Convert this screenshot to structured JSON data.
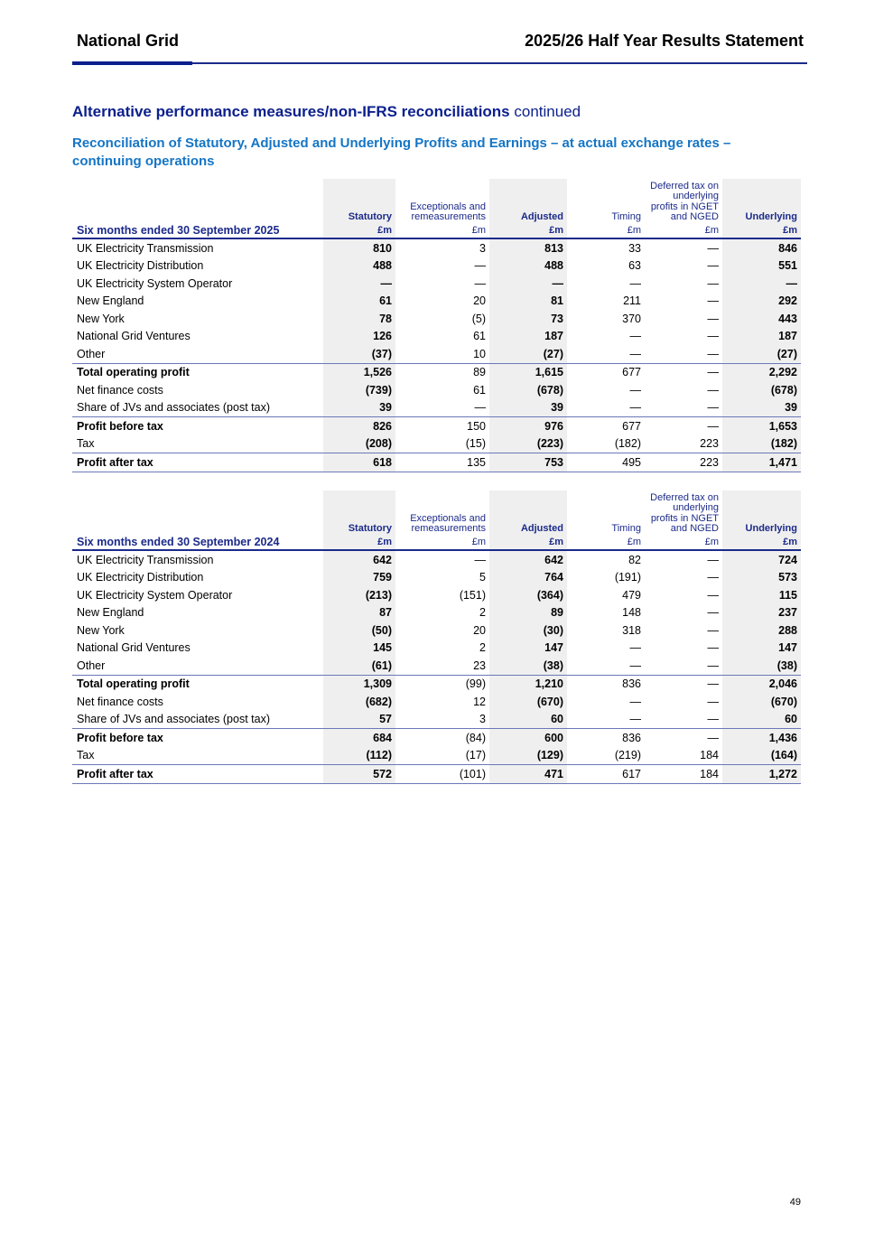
{
  "header": {
    "company": "National Grid",
    "document": "2025/26 Half Year Results Statement"
  },
  "section_title": "Alternative performance measures/non-IFRS reconciliations",
  "section_suffix": "continued",
  "subtitle": "Reconciliation of Statutory, Adjusted and Underlying Profits and Earnings – at actual exchange rates – continuing operations",
  "columns": [
    {
      "label": "Statutory",
      "unit": "£m"
    },
    {
      "label": "Exceptionals and remeasurements",
      "unit": "£m"
    },
    {
      "label": "Adjusted",
      "unit": "£m"
    },
    {
      "label": "Timing",
      "unit": "£m"
    },
    {
      "label": "Deferred tax on underlying profits in NGET and NGED",
      "unit": "£m"
    },
    {
      "label": "Underlying",
      "unit": "£m"
    }
  ],
  "tables": [
    {
      "period": "Six months ended 30 September 2025",
      "rows": [
        {
          "label": "UK Electricity Transmission",
          "values": [
            "810",
            "3",
            "813",
            "33",
            "—",
            "846"
          ]
        },
        {
          "label": "UK Electricity Distribution",
          "values": [
            "488",
            "—",
            "488",
            "63",
            "—",
            "551"
          ]
        },
        {
          "label": "UK Electricity System Operator",
          "values": [
            "—",
            "—",
            "—",
            "—",
            "—",
            "—"
          ]
        },
        {
          "label": "New England",
          "values": [
            "61",
            "20",
            "81",
            "211",
            "—",
            "292"
          ]
        },
        {
          "label": "New York",
          "values": [
            "78",
            "(5)",
            "73",
            "370",
            "—",
            "443"
          ]
        },
        {
          "label": "National Grid Ventures",
          "values": [
            "126",
            "61",
            "187",
            "—",
            "—",
            "187"
          ]
        },
        {
          "label": "Other",
          "values": [
            "(37)",
            "10",
            "(27)",
            "—",
            "—",
            "(27)"
          ]
        },
        {
          "label": "Total operating profit",
          "total": true,
          "values": [
            "1,526",
            "89",
            "1,615",
            "677",
            "—",
            "2,292"
          ]
        },
        {
          "label": "Net finance costs",
          "values": [
            "(739)",
            "61",
            "(678)",
            "—",
            "—",
            "(678)"
          ]
        },
        {
          "label": "Share of JVs and associates (post tax)",
          "values": [
            "39",
            "—",
            "39",
            "—",
            "—",
            "39"
          ]
        },
        {
          "label": "Profit before tax",
          "total": true,
          "values": [
            "826",
            "150",
            "976",
            "677",
            "—",
            "1,653"
          ]
        },
        {
          "label": "Tax",
          "values": [
            "(208)",
            "(15)",
            "(223)",
            "(182)",
            "223",
            "(182)"
          ]
        },
        {
          "label": "Profit after tax",
          "total": true,
          "values": [
            "618",
            "135",
            "753",
            "495",
            "223",
            "1,471"
          ]
        }
      ]
    },
    {
      "period": "Six months ended 30 September 2024",
      "rows": [
        {
          "label": "UK Electricity Transmission",
          "values": [
            "642",
            "—",
            "642",
            "82",
            "—",
            "724"
          ]
        },
        {
          "label": "UK Electricity Distribution",
          "values": [
            "759",
            "5",
            "764",
            "(191)",
            "—",
            "573"
          ]
        },
        {
          "label": "UK Electricity System Operator",
          "values": [
            "(213)",
            "(151)",
            "(364)",
            "479",
            "—",
            "115"
          ]
        },
        {
          "label": "New England",
          "values": [
            "87",
            "2",
            "89",
            "148",
            "—",
            "237"
          ]
        },
        {
          "label": "New York",
          "values": [
            "(50)",
            "20",
            "(30)",
            "318",
            "—",
            "288"
          ]
        },
        {
          "label": "National Grid Ventures",
          "values": [
            "145",
            "2",
            "147",
            "—",
            "—",
            "147"
          ]
        },
        {
          "label": "Other",
          "values": [
            "(61)",
            "23",
            "(38)",
            "—",
            "—",
            "(38)"
          ]
        },
        {
          "label": "Total operating profit",
          "total": true,
          "values": [
            "1,309",
            "(99)",
            "1,210",
            "836",
            "—",
            "2,046"
          ]
        },
        {
          "label": "Net finance costs",
          "values": [
            "(682)",
            "12",
            "(670)",
            "—",
            "—",
            "(670)"
          ]
        },
        {
          "label": "Share of JVs and associates (post tax)",
          "values": [
            "57",
            "3",
            "60",
            "—",
            "—",
            "60"
          ]
        },
        {
          "label": "Profit before tax",
          "total": true,
          "values": [
            "684",
            "(84)",
            "600",
            "836",
            "—",
            "1,436"
          ]
        },
        {
          "label": "Tax",
          "values": [
            "(112)",
            "(17)",
            "(129)",
            "(219)",
            "184",
            "(164)"
          ]
        },
        {
          "label": "Profit after tax",
          "total": true,
          "values": [
            "572",
            "(101)",
            "471",
            "617",
            "184",
            "1,272"
          ]
        }
      ]
    }
  ],
  "page_number": "49"
}
